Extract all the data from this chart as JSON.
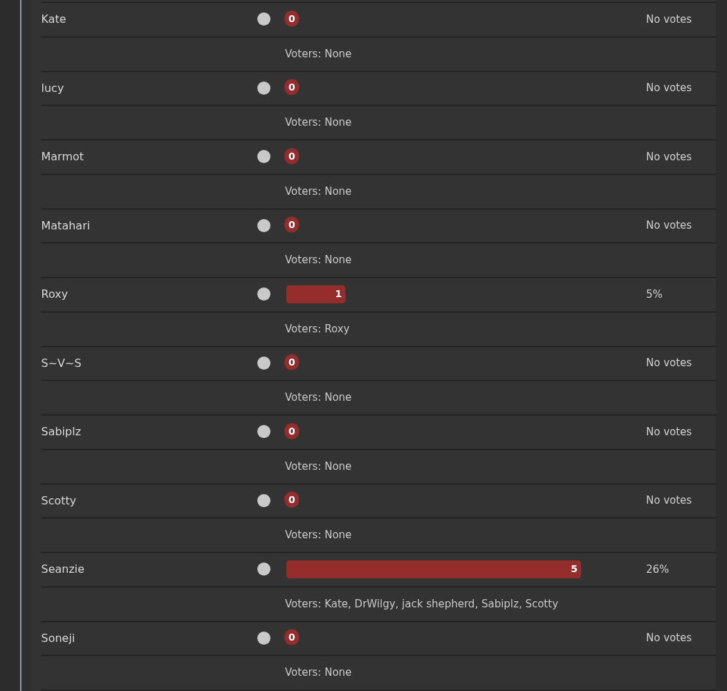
{
  "chart_data": {
    "type": "bar",
    "orientation": "horizontal",
    "categories": [
      "Kate",
      "lucy",
      "Marmot",
      "Matahari",
      "Roxy",
      "S~V~S",
      "Sabiplz",
      "Scotty",
      "Seanzie",
      "Soneji"
    ],
    "values": [
      0,
      0,
      0,
      0,
      1,
      0,
      0,
      0,
      5,
      0
    ],
    "color": "#962d2d",
    "data_labels": true,
    "grid": "y",
    "tick_labels": "y",
    "annotations": [
      "No votes",
      "Voters: None",
      "No votes",
      "Voters: None",
      "No votes",
      "Voters: None",
      "No votes",
      "Voters: None",
      "5%",
      "Voters: Roxy",
      "No votes",
      "Voters: None",
      "No votes",
      "Voters: None",
      "No votes",
      "Voters: None",
      "26%",
      "Voters: Kate, DrWilgy, jack shepherd, Sabiplz, Scotty",
      "No votes",
      "Voters: None"
    ]
  }
}
